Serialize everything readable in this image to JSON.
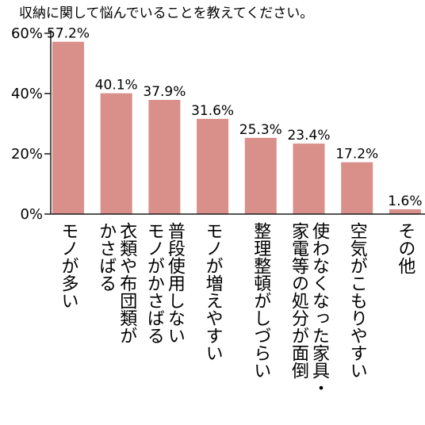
{
  "chart_data": {
    "type": "bar",
    "title": "収納に関して悩んでいることを教えてください。",
    "categories": [
      "モノが多い",
      "衣類や布団類がかさばる",
      "普段使用しないモノがかさばる",
      "モノが増えやすい",
      "整理整頓がしづらい",
      "使わなくなった家具・家電等の処分が面倒",
      "空気がこもりやすい",
      "その他"
    ],
    "category_columns": [
      [
        "モノが多い"
      ],
      [
        "衣類や布団類が",
        "かさばる"
      ],
      [
        "普段使用しない",
        "モノがかさばる"
      ],
      [
        "モノが増えやすい"
      ],
      [
        "整理整頓がしづらい"
      ],
      [
        "使わなくなった家具・",
        "家電等の処分が面倒"
      ],
      [
        "空気がこもりやすい"
      ],
      [
        "その他"
      ]
    ],
    "values": [
      57.2,
      40.1,
      37.9,
      31.6,
      25.3,
      23.4,
      17.2,
      1.6
    ],
    "value_labels": [
      "57.2%",
      "40.1%",
      "37.9%",
      "31.6%",
      "25.3%",
      "23.4%",
      "17.2%",
      "1.6%"
    ],
    "ylim": [
      0,
      60
    ],
    "yticks": [
      0,
      20,
      40,
      60
    ],
    "ytick_labels": [
      "0%",
      "20%",
      "40%",
      "60%"
    ],
    "grid": false,
    "bar_color": "#d98f8a",
    "axis_color": "#1a1a1a"
  }
}
